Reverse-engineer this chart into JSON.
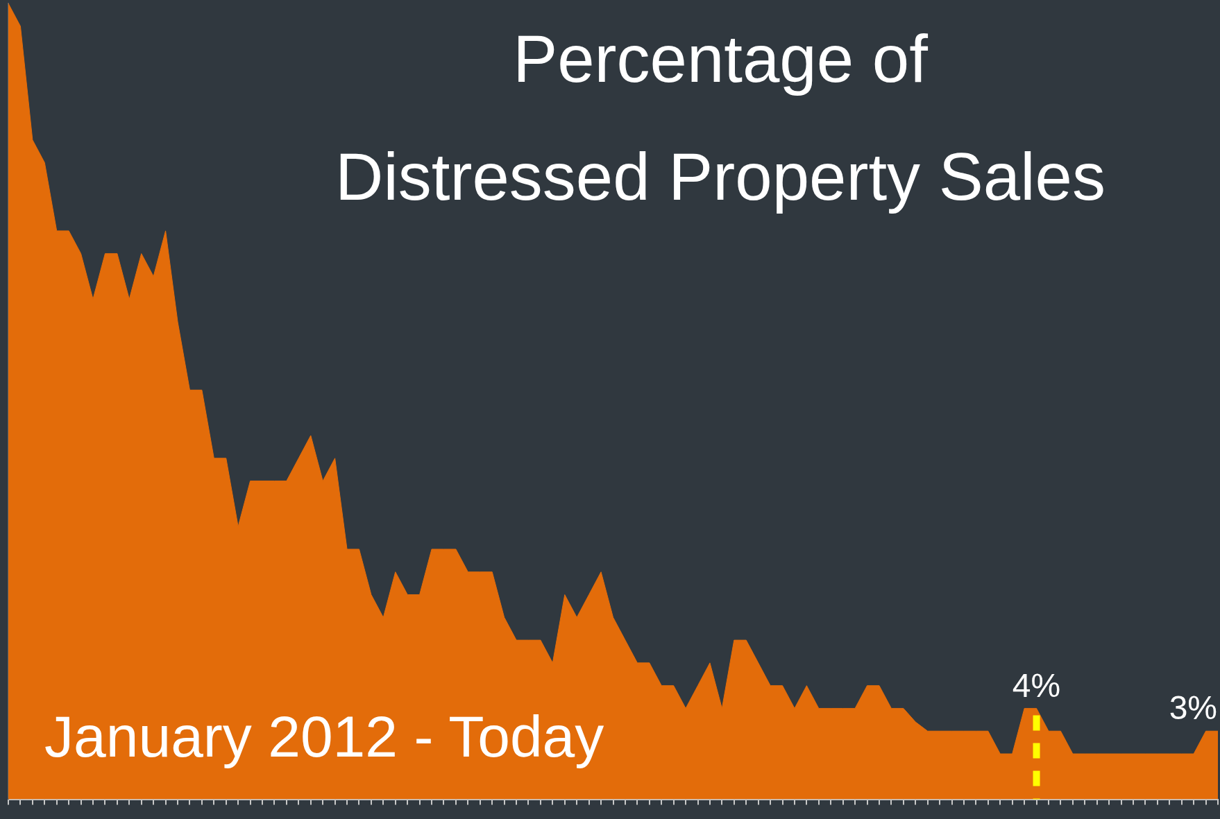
{
  "chart_data": {
    "type": "area",
    "title": "Percentage of\nDistressed Property Sales",
    "annotations": [
      "January 2012 - Today"
    ],
    "categories": [
      null,
      null,
      null,
      null,
      null,
      null,
      null,
      null,
      null,
      null,
      null,
      null,
      null,
      null,
      null,
      null,
      null,
      null,
      null,
      null,
      null,
      null,
      null,
      null,
      null,
      null,
      null,
      null,
      null,
      null,
      null,
      null,
      null,
      null,
      null,
      null,
      null,
      null,
      null,
      null,
      null,
      null,
      null,
      null,
      null,
      null,
      null,
      null,
      null,
      null,
      null,
      null,
      null,
      null,
      null,
      null,
      null,
      null,
      null,
      null,
      null,
      null,
      null,
      null,
      null,
      null,
      null,
      null,
      null,
      null,
      null,
      null,
      null,
      null,
      null,
      null,
      null,
      null,
      null,
      null,
      null,
      null,
      null,
      null,
      null,
      null,
      null,
      null,
      null,
      null,
      null,
      null,
      null,
      null,
      null,
      null,
      null,
      null,
      null,
      null,
      null
    ],
    "values": [
      35,
      34,
      29,
      28,
      25,
      25,
      24,
      22,
      24,
      24,
      22,
      24,
      23,
      25,
      21,
      18,
      18,
      15,
      15,
      12,
      14,
      14,
      14,
      14,
      15,
      16,
      14,
      15,
      11,
      11,
      9,
      8,
      10,
      9,
      9,
      11,
      11,
      11,
      10,
      10,
      10,
      8,
      7,
      7,
      7,
      6,
      9,
      8,
      9,
      10,
      8,
      7,
      6,
      6,
      5,
      5,
      4,
      5,
      6,
      4,
      7,
      7,
      6,
      5,
      5,
      4,
      5,
      4,
      4,
      4,
      4,
      5,
      5,
      4,
      4,
      3.4,
      3,
      3,
      3,
      3,
      3,
      3,
      2,
      2,
      4,
      4,
      3,
      3,
      2,
      2,
      2,
      2,
      2,
      2,
      2,
      2,
      2,
      2,
      2,
      3,
      3
    ],
    "value_labels": [
      null,
      null,
      null,
      null,
      null,
      null,
      null,
      null,
      null,
      null,
      null,
      null,
      null,
      null,
      null,
      null,
      null,
      null,
      null,
      null,
      null,
      null,
      null,
      null,
      null,
      null,
      null,
      null,
      null,
      null,
      null,
      null,
      null,
      null,
      null,
      null,
      null,
      null,
      null,
      null,
      null,
      null,
      null,
      null,
      null,
      null,
      null,
      null,
      null,
      null,
      null,
      null,
      null,
      null,
      null,
      null,
      null,
      null,
      null,
      null,
      null,
      null,
      null,
      null,
      null,
      null,
      null,
      null,
      null,
      null,
      null,
      null,
      null,
      null,
      null,
      null,
      null,
      null,
      null,
      null,
      null,
      null,
      null,
      null,
      null,
      "4%",
      null,
      null,
      null,
      null,
      null,
      null,
      null,
      null,
      null,
      null,
      null,
      null,
      null,
      null,
      "3%"
    ],
    "color": "#e36c0a",
    "ylim": [
      0,
      35
    ],
    "grid": false,
    "legend": false,
    "marker": "none"
  }
}
